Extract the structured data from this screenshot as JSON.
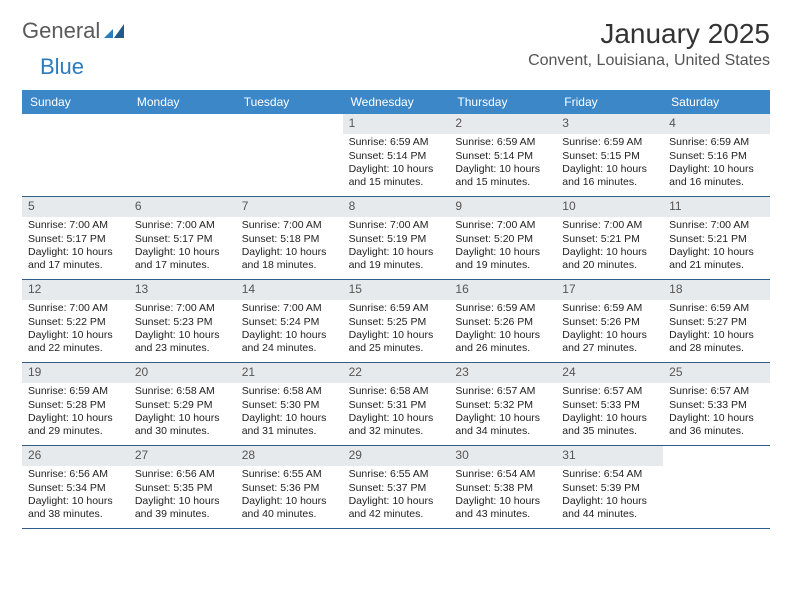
{
  "logo": {
    "text1": "General",
    "text2": "Blue",
    "color1": "#5a5a5a",
    "color2": "#2b7bbf"
  },
  "title": "January 2025",
  "location": "Convent, Louisiana, United States",
  "colors": {
    "header_bg": "#3b87c8",
    "header_text": "#ffffff",
    "daynum_bg": "#e7eaed",
    "daynum_text": "#555555",
    "week_border": "#2f5f8a",
    "body_text": "#222222",
    "page_bg": "#ffffff"
  },
  "fonts": {
    "title_size": 28,
    "location_size": 16,
    "weekday_size": 12,
    "cell_size": 10.5
  },
  "weekdays": [
    "Sunday",
    "Monday",
    "Tuesday",
    "Wednesday",
    "Thursday",
    "Friday",
    "Saturday"
  ],
  "weeks": [
    [
      null,
      null,
      null,
      {
        "n": "1",
        "sunrise": "6:59 AM",
        "sunset": "5:14 PM",
        "daylight": "10 hours and 15 minutes."
      },
      {
        "n": "2",
        "sunrise": "6:59 AM",
        "sunset": "5:14 PM",
        "daylight": "10 hours and 15 minutes."
      },
      {
        "n": "3",
        "sunrise": "6:59 AM",
        "sunset": "5:15 PM",
        "daylight": "10 hours and 16 minutes."
      },
      {
        "n": "4",
        "sunrise": "6:59 AM",
        "sunset": "5:16 PM",
        "daylight": "10 hours and 16 minutes."
      }
    ],
    [
      {
        "n": "5",
        "sunrise": "7:00 AM",
        "sunset": "5:17 PM",
        "daylight": "10 hours and 17 minutes."
      },
      {
        "n": "6",
        "sunrise": "7:00 AM",
        "sunset": "5:17 PM",
        "daylight": "10 hours and 17 minutes."
      },
      {
        "n": "7",
        "sunrise": "7:00 AM",
        "sunset": "5:18 PM",
        "daylight": "10 hours and 18 minutes."
      },
      {
        "n": "8",
        "sunrise": "7:00 AM",
        "sunset": "5:19 PM",
        "daylight": "10 hours and 19 minutes."
      },
      {
        "n": "9",
        "sunrise": "7:00 AM",
        "sunset": "5:20 PM",
        "daylight": "10 hours and 19 minutes."
      },
      {
        "n": "10",
        "sunrise": "7:00 AM",
        "sunset": "5:21 PM",
        "daylight": "10 hours and 20 minutes."
      },
      {
        "n": "11",
        "sunrise": "7:00 AM",
        "sunset": "5:21 PM",
        "daylight": "10 hours and 21 minutes."
      }
    ],
    [
      {
        "n": "12",
        "sunrise": "7:00 AM",
        "sunset": "5:22 PM",
        "daylight": "10 hours and 22 minutes."
      },
      {
        "n": "13",
        "sunrise": "7:00 AM",
        "sunset": "5:23 PM",
        "daylight": "10 hours and 23 minutes."
      },
      {
        "n": "14",
        "sunrise": "7:00 AM",
        "sunset": "5:24 PM",
        "daylight": "10 hours and 24 minutes."
      },
      {
        "n": "15",
        "sunrise": "6:59 AM",
        "sunset": "5:25 PM",
        "daylight": "10 hours and 25 minutes."
      },
      {
        "n": "16",
        "sunrise": "6:59 AM",
        "sunset": "5:26 PM",
        "daylight": "10 hours and 26 minutes."
      },
      {
        "n": "17",
        "sunrise": "6:59 AM",
        "sunset": "5:26 PM",
        "daylight": "10 hours and 27 minutes."
      },
      {
        "n": "18",
        "sunrise": "6:59 AM",
        "sunset": "5:27 PM",
        "daylight": "10 hours and 28 minutes."
      }
    ],
    [
      {
        "n": "19",
        "sunrise": "6:59 AM",
        "sunset": "5:28 PM",
        "daylight": "10 hours and 29 minutes."
      },
      {
        "n": "20",
        "sunrise": "6:58 AM",
        "sunset": "5:29 PM",
        "daylight": "10 hours and 30 minutes."
      },
      {
        "n": "21",
        "sunrise": "6:58 AM",
        "sunset": "5:30 PM",
        "daylight": "10 hours and 31 minutes."
      },
      {
        "n": "22",
        "sunrise": "6:58 AM",
        "sunset": "5:31 PM",
        "daylight": "10 hours and 32 minutes."
      },
      {
        "n": "23",
        "sunrise": "6:57 AM",
        "sunset": "5:32 PM",
        "daylight": "10 hours and 34 minutes."
      },
      {
        "n": "24",
        "sunrise": "6:57 AM",
        "sunset": "5:33 PM",
        "daylight": "10 hours and 35 minutes."
      },
      {
        "n": "25",
        "sunrise": "6:57 AM",
        "sunset": "5:33 PM",
        "daylight": "10 hours and 36 minutes."
      }
    ],
    [
      {
        "n": "26",
        "sunrise": "6:56 AM",
        "sunset": "5:34 PM",
        "daylight": "10 hours and 38 minutes."
      },
      {
        "n": "27",
        "sunrise": "6:56 AM",
        "sunset": "5:35 PM",
        "daylight": "10 hours and 39 minutes."
      },
      {
        "n": "28",
        "sunrise": "6:55 AM",
        "sunset": "5:36 PM",
        "daylight": "10 hours and 40 minutes."
      },
      {
        "n": "29",
        "sunrise": "6:55 AM",
        "sunset": "5:37 PM",
        "daylight": "10 hours and 42 minutes."
      },
      {
        "n": "30",
        "sunrise": "6:54 AM",
        "sunset": "5:38 PM",
        "daylight": "10 hours and 43 minutes."
      },
      {
        "n": "31",
        "sunrise": "6:54 AM",
        "sunset": "5:39 PM",
        "daylight": "10 hours and 44 minutes."
      },
      null
    ]
  ],
  "labels": {
    "sunrise": "Sunrise:",
    "sunset": "Sunset:",
    "daylight": "Daylight:"
  }
}
